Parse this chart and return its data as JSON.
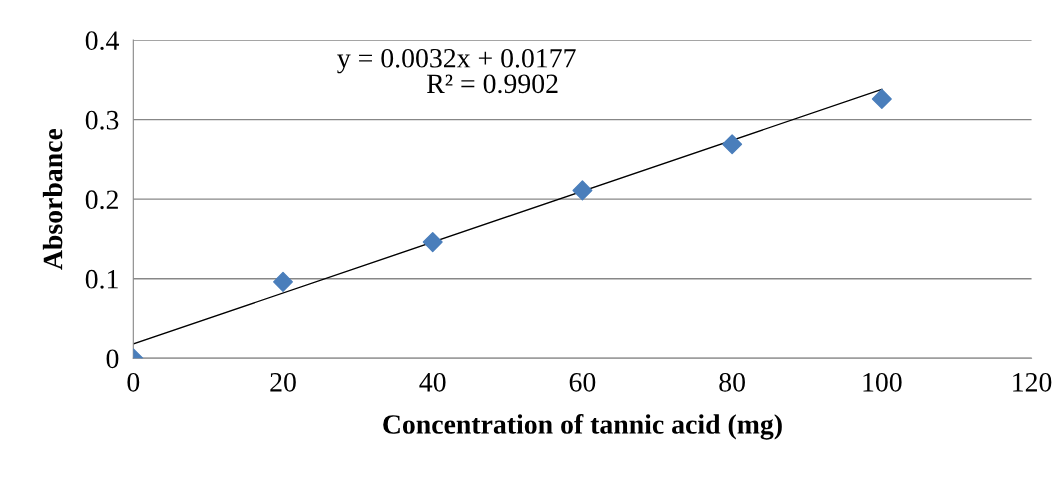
{
  "chart_data": {
    "type": "scatter",
    "xlabel": "Concentration of tannic acid (mg)",
    "ylabel": "Absorbance",
    "xlim": [
      0,
      120
    ],
    "xticks": [
      0,
      20,
      40,
      60,
      80,
      100,
      120
    ],
    "ylim": [
      0,
      0.4
    ],
    "yticks": [
      0,
      0.1,
      0.2,
      0.3,
      0.4
    ],
    "grid": "y",
    "legend": false,
    "series": [
      {
        "color": "#4a7ebb",
        "marker": "diamond",
        "x": [
          0,
          20,
          40,
          60,
          80,
          100
        ],
        "values": [
          0,
          0.096,
          0.146,
          0.211,
          0.269,
          0.326
        ]
      },
      {
        "type": "line",
        "color": "#000000",
        "marker": "none",
        "line_style": "solid",
        "x": [
          0,
          100
        ],
        "values": [
          0.018,
          0.338
        ]
      }
    ],
    "annotations": [
      "y = 0.0032x + 0.0177",
      "R² = 0.9902"
    ]
  }
}
